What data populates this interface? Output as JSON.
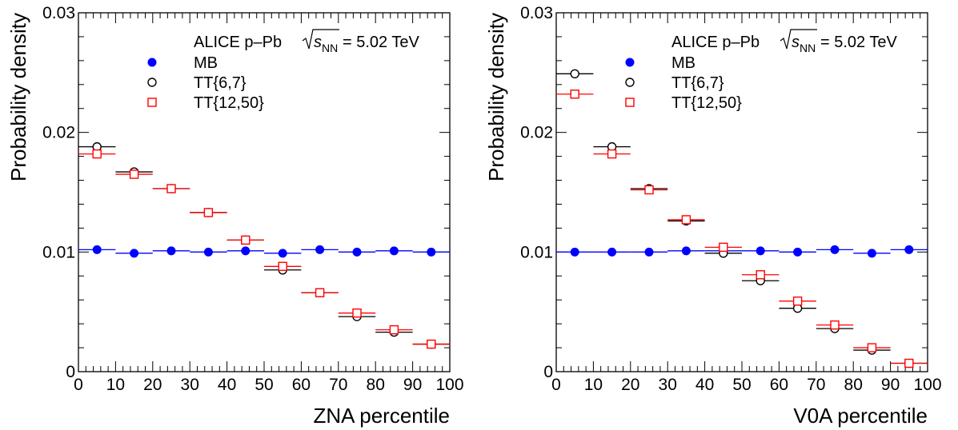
{
  "chart_data": [
    {
      "type": "scatter",
      "annotation": {
        "experiment": "ALICE p–Pb",
        "energy_symbol": "s",
        "energy_sub": "NN",
        "energy_value": "= 5.02 TeV"
      },
      "xlabel": "ZNA percentile",
      "ylabel": "Probability density",
      "xlim": [
        0,
        100
      ],
      "ylim": [
        0,
        0.03
      ],
      "x_ticks": [
        0,
        10,
        20,
        30,
        40,
        50,
        60,
        70,
        80,
        90,
        100
      ],
      "x_tick_labels": [
        "0",
        "10",
        "20",
        "30",
        "40",
        "50",
        "60",
        "70",
        "80",
        "90",
        "100"
      ],
      "y_ticks": [
        0,
        0.01,
        0.02,
        0.03
      ],
      "y_tick_labels": [
        "0",
        "0.01",
        "0.02",
        "0.03"
      ],
      "grid": false,
      "legend_position": "top-right",
      "x": [
        5,
        15,
        25,
        35,
        45,
        55,
        65,
        75,
        85,
        95
      ],
      "x_err": 5,
      "series": [
        {
          "name": "MB",
          "marker": "filled-circle",
          "color": "#0000ff",
          "values": [
            0.0102,
            0.0099,
            0.0101,
            0.01,
            0.0101,
            0.0099,
            0.0102,
            0.01,
            0.0101,
            0.01
          ]
        },
        {
          "name": "TT{6,7}",
          "marker": "open-circle",
          "color": "#000000",
          "values": [
            0.0188,
            0.0167,
            0.0153,
            0.0133,
            0.011,
            0.0085,
            0.0066,
            0.0046,
            0.0033,
            0.0023
          ]
        },
        {
          "name": "TT{12,50}",
          "marker": "open-square",
          "color": "#ff0000",
          "values": [
            0.0182,
            0.0165,
            0.0153,
            0.0133,
            0.011,
            0.0088,
            0.0066,
            0.0049,
            0.0035,
            0.0023
          ]
        }
      ]
    },
    {
      "type": "scatter",
      "annotation": {
        "experiment": "ALICE p–Pb",
        "energy_symbol": "s",
        "energy_sub": "NN",
        "energy_value": "= 5.02 TeV"
      },
      "xlabel": "V0A percentile",
      "ylabel": "Probability density",
      "xlim": [
        0,
        100
      ],
      "ylim": [
        0,
        0.03
      ],
      "x_ticks": [
        0,
        10,
        20,
        30,
        40,
        50,
        60,
        70,
        80,
        90,
        100
      ],
      "x_tick_labels": [
        "0",
        "10",
        "20",
        "30",
        "40",
        "50",
        "60",
        "70",
        "80",
        "90",
        "100"
      ],
      "y_ticks": [
        0,
        0.01,
        0.02,
        0.03
      ],
      "y_tick_labels": [
        "0",
        "0.01",
        "0.02",
        "0.03"
      ],
      "grid": false,
      "legend_position": "top-right",
      "x": [
        5,
        15,
        25,
        35,
        45,
        55,
        65,
        75,
        85,
        95
      ],
      "x_err": 5,
      "series": [
        {
          "name": "MB",
          "marker": "filled-circle",
          "color": "#0000ff",
          "values": [
            0.01,
            0.01,
            0.01,
            0.0101,
            0.0101,
            0.0101,
            0.01,
            0.0102,
            0.0099,
            0.0102
          ]
        },
        {
          "name": "TT{6,7}",
          "marker": "open-circle",
          "color": "#000000",
          "values": [
            0.0249,
            0.0188,
            0.0153,
            0.0126,
            0.0099,
            0.0076,
            0.0053,
            0.0036,
            0.0018,
            0.0007
          ]
        },
        {
          "name": "TT{12,50}",
          "marker": "open-square",
          "color": "#ff0000",
          "values": [
            0.0232,
            0.0182,
            0.0152,
            0.0127,
            0.0104,
            0.0081,
            0.0059,
            0.0039,
            0.002,
            0.0007
          ]
        }
      ]
    }
  ]
}
